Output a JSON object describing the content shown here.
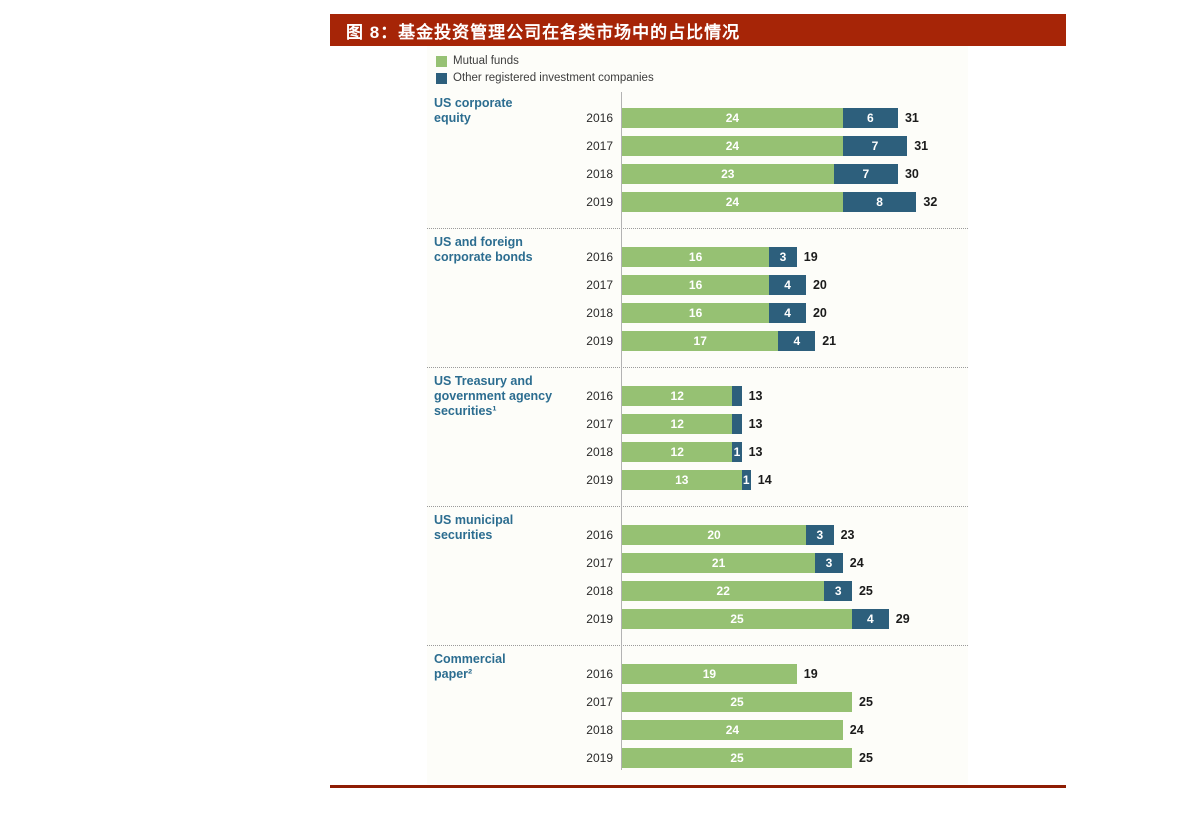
{
  "header": {
    "title": "图 8：基金投资管理公司在各类市场中的占比情况"
  },
  "theme": {
    "header_red": "#a62507",
    "rule_red": "#8e1d03",
    "mutual_funds_green": "#96c173",
    "other_companies_blue": "#2d5f7c",
    "category_label_teal": "#2c6d90"
  },
  "legend": {
    "items": [
      {
        "label": "Mutual funds",
        "color": "#96c173"
      },
      {
        "label": "Other registered investment companies",
        "color": "#2d5f7c"
      }
    ]
  },
  "chart_data": {
    "type": "bar",
    "orientation": "horizontal",
    "stacked": true,
    "unit": "percent share of market",
    "x_range": [
      0,
      32
    ],
    "grid": false,
    "legend_position": "top-left",
    "years": [
      "2016",
      "2017",
      "2018",
      "2019"
    ],
    "series_names": [
      "Mutual funds",
      "Other registered investment companies"
    ],
    "sections": [
      {
        "category": "US corporate\nequity",
        "rows": [
          {
            "year": "2016",
            "mutual": 24,
            "other": 6,
            "total": 31
          },
          {
            "year": "2017",
            "mutual": 24,
            "other": 7,
            "total": 31
          },
          {
            "year": "2018",
            "mutual": 23,
            "other": 7,
            "total": 30
          },
          {
            "year": "2019",
            "mutual": 24,
            "other": 8,
            "total": 32
          }
        ]
      },
      {
        "category": "US and foreign\ncorporate bonds",
        "rows": [
          {
            "year": "2016",
            "mutual": 16,
            "other": 3,
            "total": 19
          },
          {
            "year": "2017",
            "mutual": 16,
            "other": 4,
            "total": 20
          },
          {
            "year": "2018",
            "mutual": 16,
            "other": 4,
            "total": 20
          },
          {
            "year": "2019",
            "mutual": 17,
            "other": 4,
            "total": 21
          }
        ]
      },
      {
        "category": "US Treasury and\ngovernment agency\nsecurities¹",
        "rows": [
          {
            "year": "2016",
            "mutual": 12,
            "other": 1,
            "total": 13,
            "show_other_label": false
          },
          {
            "year": "2017",
            "mutual": 12,
            "other": 1,
            "total": 13,
            "show_other_label": false
          },
          {
            "year": "2018",
            "mutual": 12,
            "other": 1,
            "total": 13
          },
          {
            "year": "2019",
            "mutual": 13,
            "other": 1,
            "total": 14
          }
        ]
      },
      {
        "category": "US municipal\nsecurities",
        "rows": [
          {
            "year": "2016",
            "mutual": 20,
            "other": 3,
            "total": 23
          },
          {
            "year": "2017",
            "mutual": 21,
            "other": 3,
            "total": 24
          },
          {
            "year": "2018",
            "mutual": 22,
            "other": 3,
            "total": 25
          },
          {
            "year": "2019",
            "mutual": 25,
            "other": 4,
            "total": 29
          }
        ]
      },
      {
        "category": "Commercial\npaper²",
        "rows": [
          {
            "year": "2016",
            "mutual": 19,
            "other": 0,
            "total": 19
          },
          {
            "year": "2017",
            "mutual": 25,
            "other": 0,
            "total": 25
          },
          {
            "year": "2018",
            "mutual": 24,
            "other": 0,
            "total": 24
          },
          {
            "year": "2019",
            "mutual": 25,
            "other": 0,
            "total": 25
          }
        ]
      }
    ]
  }
}
